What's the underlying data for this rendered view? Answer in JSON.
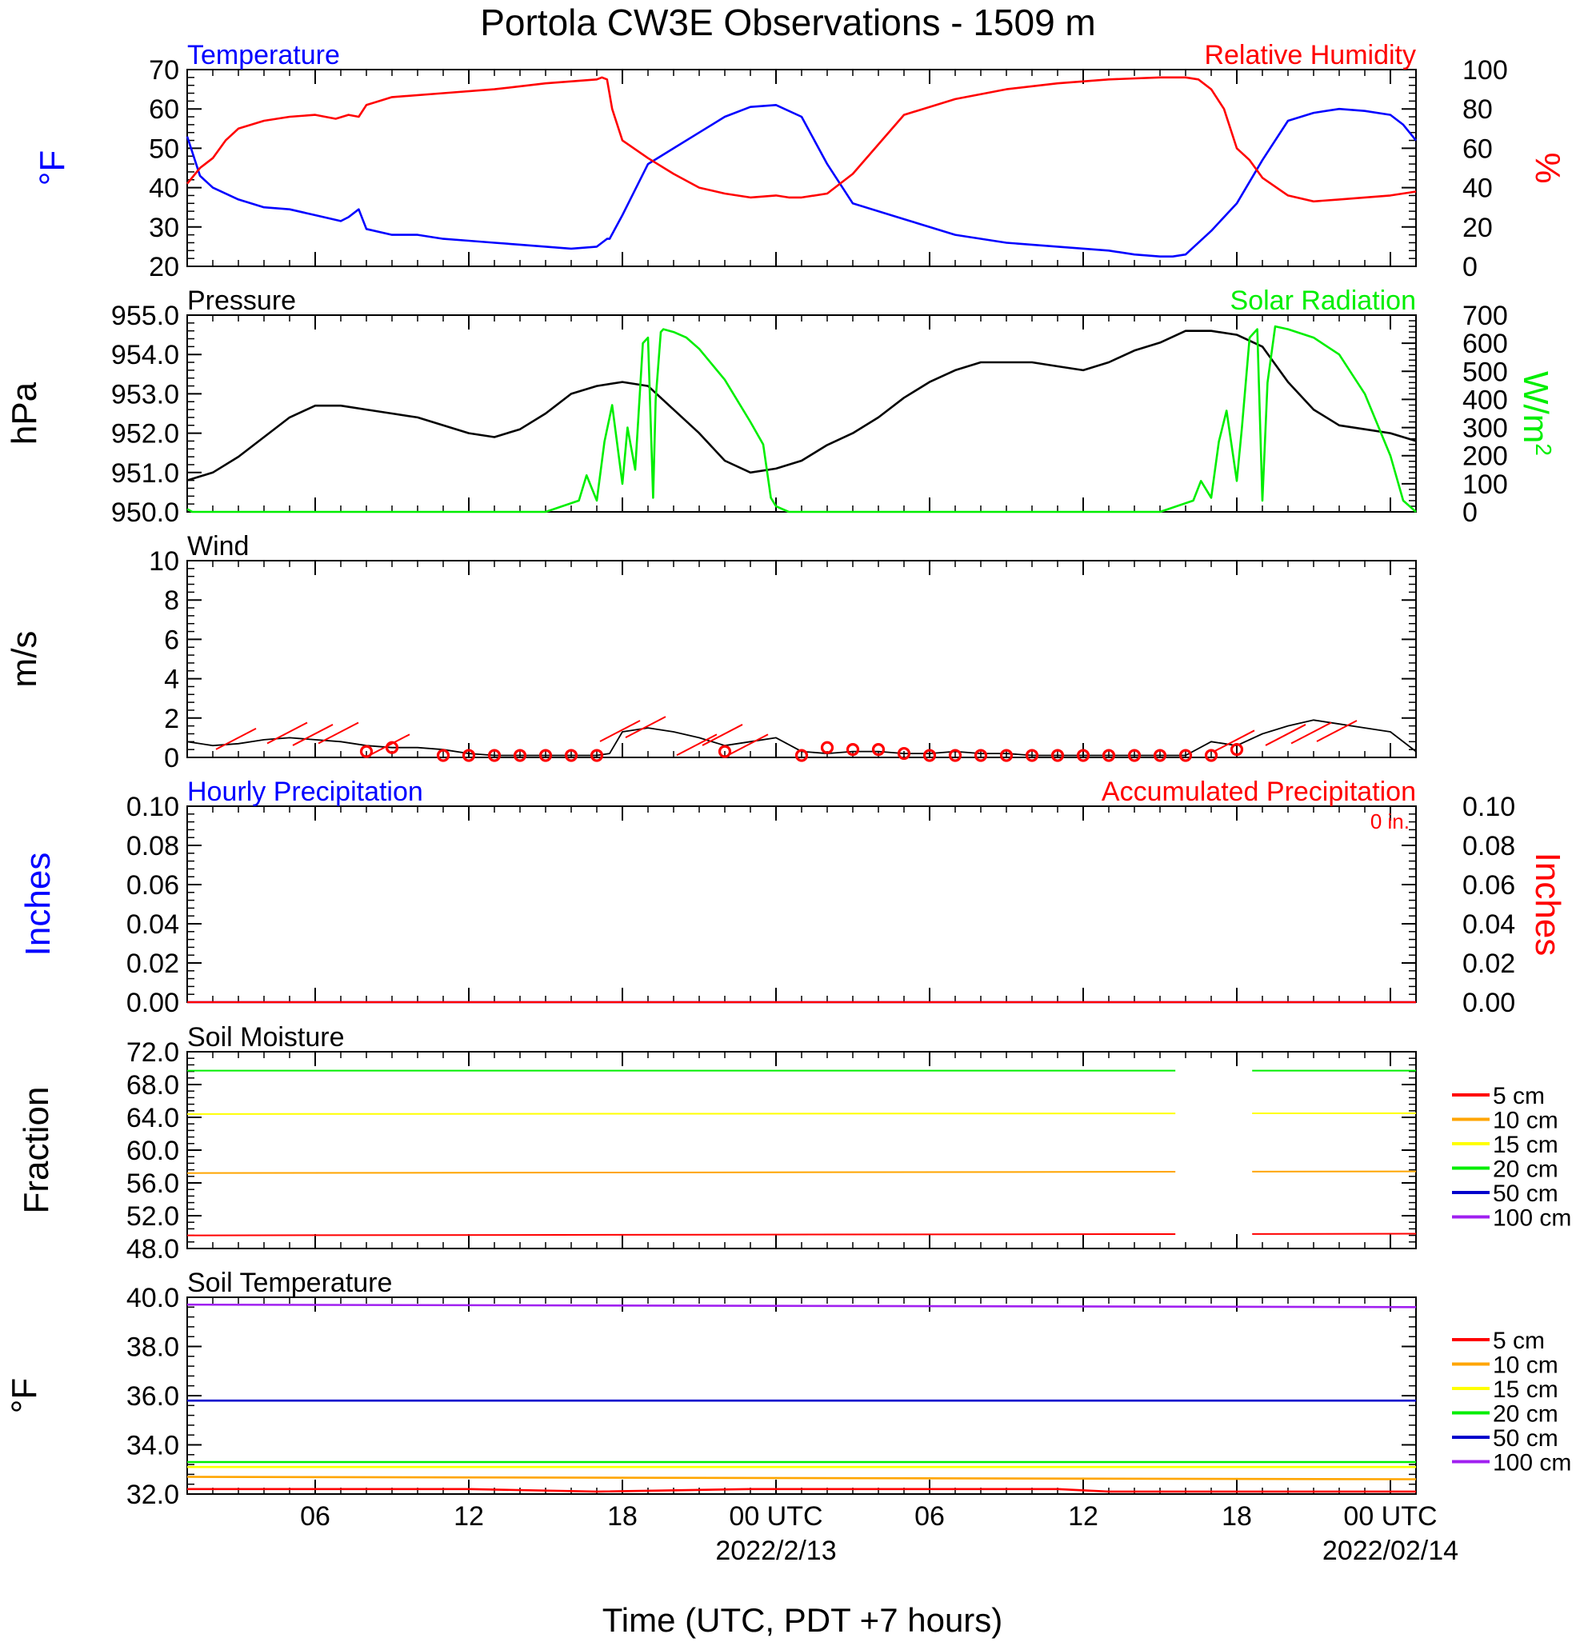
{
  "title": "Portola CW3E Observations - 1509 m",
  "time_axis": {
    "xlabel": "Time (UTC, PDT +7 hours)",
    "x_range_hours": [
      0,
      48
    ],
    "ticks": [
      {
        "hour": 5,
        "label": "06",
        "date": ""
      },
      {
        "hour": 11,
        "label": "12",
        "date": ""
      },
      {
        "hour": 17,
        "label": "18",
        "date": ""
      },
      {
        "hour": 23,
        "label": "00 UTC",
        "date": "2022/2/13"
      },
      {
        "hour": 29,
        "label": "06",
        "date": ""
      },
      {
        "hour": 35,
        "label": "12",
        "date": ""
      },
      {
        "hour": 41,
        "label": "18",
        "date": ""
      },
      {
        "hour": 47,
        "label": "00 UTC",
        "date": "2022/02/14"
      }
    ]
  },
  "colors": {
    "blue": "#0000ff",
    "red": "#ff0000",
    "green": "#00ee00",
    "black": "#000000"
  },
  "chart_data": [
    {
      "id": "temperature_rh",
      "type": "line",
      "left_title": "Temperature",
      "right_title": "Relative Humidity",
      "ylabel_left": "°F",
      "ylabel_right": "%",
      "ylim_left": [
        20,
        70
      ],
      "ylim_right": [
        0,
        100
      ],
      "yticks_left": [
        "70",
        "60",
        "50",
        "40",
        "30",
        "20"
      ],
      "yticks_right": [
        "100",
        "80",
        "60",
        "40",
        "20",
        "0"
      ],
      "series": [
        {
          "axis": "left",
          "color": "#0000ff",
          "x": [
            0,
            0.5,
            1,
            2,
            3,
            4,
            5,
            6,
            6.3,
            6.7,
            7,
            8,
            9,
            10,
            11,
            12,
            13,
            14,
            15,
            16,
            16.4,
            16.5,
            17,
            18,
            19,
            20,
            21,
            22,
            23,
            24,
            25,
            26,
            28,
            30,
            32,
            34,
            36,
            37,
            38,
            38.5,
            39,
            40,
            41,
            42,
            43,
            44,
            45,
            46,
            47,
            47.5,
            48
          ],
          "y": [
            53,
            43,
            40,
            37,
            35,
            34.5,
            33,
            31.5,
            32.5,
            34.5,
            29.5,
            28,
            28,
            27,
            26.5,
            26,
            25.5,
            25,
            24.5,
            25,
            27,
            27,
            33,
            46,
            50,
            54,
            58,
            60.5,
            61,
            58,
            46,
            36,
            32,
            28,
            26,
            25,
            24,
            23,
            22.5,
            22.5,
            23,
            29,
            36,
            47,
            57,
            59,
            60,
            59.5,
            58.5,
            56,
            52
          ]
        },
        {
          "axis": "right",
          "color": "#ff0000",
          "x": [
            0,
            0.5,
            1,
            1.5,
            2,
            3,
            4,
            5,
            5.8,
            6.3,
            6.7,
            7,
            8,
            10,
            12,
            14,
            16,
            16.2,
            16.4,
            16.6,
            17,
            18,
            19,
            20,
            21,
            22,
            23,
            23.5,
            24,
            25,
            26,
            28,
            30,
            32,
            34,
            36,
            38,
            39,
            39.5,
            40,
            40.5,
            41,
            41.5,
            42,
            43,
            44,
            45,
            46,
            47,
            48
          ],
          "y": [
            42,
            50,
            55,
            64,
            70,
            74,
            76,
            77,
            75,
            77,
            76,
            82,
            86,
            88,
            90,
            93,
            95,
            96,
            95,
            80,
            64,
            55,
            47,
            40,
            37,
            35,
            36,
            35,
            35,
            37,
            47,
            77,
            85,
            90,
            93,
            95,
            96,
            96,
            95,
            90,
            80,
            60,
            54,
            45,
            36,
            33,
            34,
            35,
            36,
            38
          ]
        }
      ]
    },
    {
      "id": "pressure_solar",
      "type": "line",
      "left_title": "Pressure",
      "right_title": "Solar Radiation",
      "ylabel_left": "hPa",
      "ylabel_right": "W/m",
      "ylabel_right_sup": "2",
      "ylim_left": [
        950,
        955
      ],
      "ylim_right": [
        0,
        700
      ],
      "yticks_left": [
        "955.0",
        "954.0",
        "953.0",
        "952.0",
        "951.0",
        "950.0"
      ],
      "yticks_right": [
        "700",
        "600",
        "500",
        "400",
        "300",
        "200",
        "100",
        "0"
      ],
      "series": [
        {
          "axis": "left",
          "color": "#000000",
          "x": [
            0,
            1,
            2,
            3,
            4,
            5,
            6,
            7,
            8,
            9,
            10,
            11,
            12,
            13,
            14,
            15,
            16,
            17,
            18,
            19,
            20,
            21,
            22,
            23,
            24,
            25,
            26,
            27,
            28,
            29,
            30,
            31,
            32,
            33,
            34,
            35,
            36,
            37,
            38,
            39,
            40,
            41,
            42,
            43,
            44,
            45,
            46,
            47,
            48
          ],
          "y": [
            950.8,
            951.0,
            951.4,
            951.9,
            952.4,
            952.7,
            952.7,
            952.6,
            952.5,
            952.4,
            952.2,
            952.0,
            951.9,
            952.1,
            952.5,
            953.0,
            953.2,
            953.3,
            953.2,
            952.6,
            952.0,
            951.3,
            951.0,
            951.1,
            951.3,
            951.7,
            952.0,
            952.4,
            952.9,
            953.3,
            953.6,
            953.8,
            953.8,
            953.8,
            953.7,
            953.6,
            953.8,
            954.1,
            954.3,
            954.6,
            954.6,
            954.5,
            954.2,
            953.3,
            952.6,
            952.2,
            952.1,
            952.0,
            951.8
          ]
        },
        {
          "axis": "right",
          "color": "#00ee00",
          "x": [
            0,
            0.2,
            0.5,
            14,
            15.3,
            15.6,
            16,
            16.3,
            16.6,
            17,
            17.2,
            17.5,
            17.8,
            18,
            18.2,
            18.3,
            18.5,
            18.6,
            19,
            19.5,
            20,
            21,
            22,
            22.5,
            22.8,
            23,
            23.5,
            24,
            38,
            39.3,
            39.6,
            40,
            40.3,
            40.6,
            41,
            41.2,
            41.5,
            41.8,
            42,
            42.2,
            42.5,
            43,
            44,
            45,
            46,
            47,
            47.5,
            48
          ],
          "y": [
            10,
            0,
            0,
            0,
            40,
            130,
            40,
            250,
            380,
            100,
            300,
            150,
            600,
            620,
            50,
            400,
            640,
            650,
            640,
            620,
            580,
            470,
            320,
            240,
            50,
            20,
            0,
            0,
            0,
            40,
            110,
            50,
            250,
            360,
            110,
            300,
            620,
            650,
            40,
            460,
            660,
            650,
            620,
            560,
            420,
            200,
            40,
            0
          ]
        }
      ]
    },
    {
      "id": "wind",
      "type": "line",
      "left_title": "Wind",
      "ylabel_left": "m/s",
      "ylim_left": [
        0,
        10
      ],
      "yticks_left": [
        "10",
        "8",
        "6",
        "4",
        "2",
        "0"
      ],
      "series": [
        {
          "axis": "left",
          "color": "#000000",
          "x": [
            0,
            1,
            2,
            3,
            4,
            5,
            6,
            7,
            8,
            9,
            10,
            11,
            12,
            13,
            14,
            15,
            16,
            16.5,
            17,
            18,
            19,
            20,
            21,
            22,
            23,
            24,
            25,
            26,
            27,
            28,
            29,
            30,
            31,
            32,
            33,
            34,
            35,
            36,
            37,
            38,
            39,
            40,
            41,
            42,
            43,
            44,
            45,
            46,
            47,
            48
          ],
          "y": [
            0.8,
            0.6,
            0.7,
            0.9,
            1.0,
            0.9,
            0.8,
            0.6,
            0.5,
            0.5,
            0.4,
            0.2,
            0.1,
            0.1,
            0.1,
            0.1,
            0.1,
            0.2,
            1.3,
            1.5,
            1.3,
            1.0,
            0.6,
            0.8,
            1.0,
            0.3,
            0.2,
            0.3,
            0.3,
            0.2,
            0.2,
            0.3,
            0.2,
            0.2,
            0.1,
            0.1,
            0.1,
            0.1,
            0.1,
            0.1,
            0.1,
            0.8,
            0.6,
            1.2,
            1.6,
            1.9,
            1.7,
            1.5,
            1.3,
            0.3
          ]
        }
      ],
      "calm_markers": {
        "hours": [
          7,
          8,
          10,
          11,
          12,
          13,
          14,
          15,
          16,
          21,
          24,
          25,
          26,
          27,
          28,
          29,
          30,
          31,
          32,
          33,
          34,
          35,
          36,
          37,
          38,
          39,
          40,
          41
        ],
        "speed": [
          0.3,
          0.5,
          0.1,
          0.1,
          0.1,
          0.1,
          0.1,
          0.1,
          0.1,
          0.3,
          0.1,
          0.5,
          0.4,
          0.4,
          0.2,
          0.1,
          0.1,
          0.1,
          0.1,
          0.1,
          0.1,
          0.1,
          0.1,
          0.1,
          0.1,
          0.1,
          0.1,
          0.4
        ]
      },
      "barbs": {
        "hours": [
          2,
          4,
          5,
          6,
          8,
          17,
          18,
          20,
          21,
          22,
          41,
          43,
          44,
          45
        ],
        "speed": [
          0.9,
          1.2,
          1.1,
          1.2,
          0.6,
          1.3,
          1.5,
          0.6,
          1.1,
          0.6,
          0.8,
          1.1,
          1.2,
          1.3
        ]
      }
    },
    {
      "id": "precip",
      "type": "line",
      "left_title": "Hourly Precipitation",
      "right_title": "Accumulated Precipitation",
      "annotation": "0 in.",
      "ylabel_left": "Inches",
      "ylabel_right": "Inches",
      "ylim_left": [
        0,
        0.1
      ],
      "ylim_right": [
        0,
        0.1
      ],
      "yticks_left": [
        "0.10",
        "0.08",
        "0.06",
        "0.04",
        "0.02",
        "0.00"
      ],
      "yticks_right": [
        "0.10",
        "0.08",
        "0.06",
        "0.04",
        "0.02",
        "0.00"
      ],
      "series": [
        {
          "axis": "left",
          "color": "#0000ff",
          "x": [
            0,
            48
          ],
          "y": [
            0,
            0
          ]
        },
        {
          "axis": "right",
          "color": "#ff0000",
          "x": [
            0,
            48
          ],
          "y": [
            0,
            0
          ]
        }
      ]
    },
    {
      "id": "soil_moisture",
      "type": "line",
      "left_title": "Soil Moisture",
      "ylabel_left": "Fraction",
      "ylim_left": [
        48,
        72
      ],
      "yticks_left": [
        "72.0",
        "68.0",
        "64.0",
        "60.0",
        "56.0",
        "52.0",
        "48.0"
      ],
      "gap_hours": [
        38.6,
        41.6
      ],
      "series": [
        {
          "name": "5 cm",
          "color": "#ff0000",
          "x": [
            0,
            48
          ],
          "y": [
            49.6,
            49.8
          ]
        },
        {
          "name": "10 cm",
          "color": "#ffa500",
          "x": [
            0,
            48
          ],
          "y": [
            57.2,
            57.4
          ]
        },
        {
          "name": "15 cm",
          "color": "#ffff00",
          "x": [
            0,
            48
          ],
          "y": [
            64.4,
            64.5
          ]
        },
        {
          "name": "20 cm",
          "color": "#00ee00",
          "x": [
            0,
            48
          ],
          "y": [
            69.7,
            69.7
          ]
        },
        {
          "name": "50 cm",
          "color": "#0000cc",
          "x": [],
          "y": []
        },
        {
          "name": "100 cm",
          "color": "#a020f0",
          "x": [],
          "y": []
        }
      ]
    },
    {
      "id": "soil_temperature",
      "type": "line",
      "left_title": "Soil Temperature",
      "ylabel_left": "°F",
      "ylim_left": [
        32,
        40
      ],
      "yticks_left": [
        "40.0",
        "38.0",
        "36.0",
        "34.0",
        "32.0"
      ],
      "series": [
        {
          "name": "5 cm",
          "color": "#ff0000",
          "x": [
            0,
            11,
            16,
            22,
            34,
            36,
            48
          ],
          "y": [
            32.2,
            32.2,
            32.1,
            32.2,
            32.2,
            32.1,
            32.1
          ]
        },
        {
          "name": "10 cm",
          "color": "#ffa500",
          "x": [
            0,
            48
          ],
          "y": [
            32.7,
            32.6
          ]
        },
        {
          "name": "15 cm",
          "color": "#ffff00",
          "x": [
            0,
            48
          ],
          "y": [
            33.1,
            33.1
          ]
        },
        {
          "name": "20 cm",
          "color": "#00ee00",
          "x": [
            0,
            48
          ],
          "y": [
            33.3,
            33.3
          ]
        },
        {
          "name": "50 cm",
          "color": "#0000cc",
          "x": [
            0,
            48
          ],
          "y": [
            35.8,
            35.8
          ]
        },
        {
          "name": "100 cm",
          "color": "#a020f0",
          "x": [
            0,
            48
          ],
          "y": [
            39.7,
            39.6
          ]
        }
      ]
    }
  ]
}
